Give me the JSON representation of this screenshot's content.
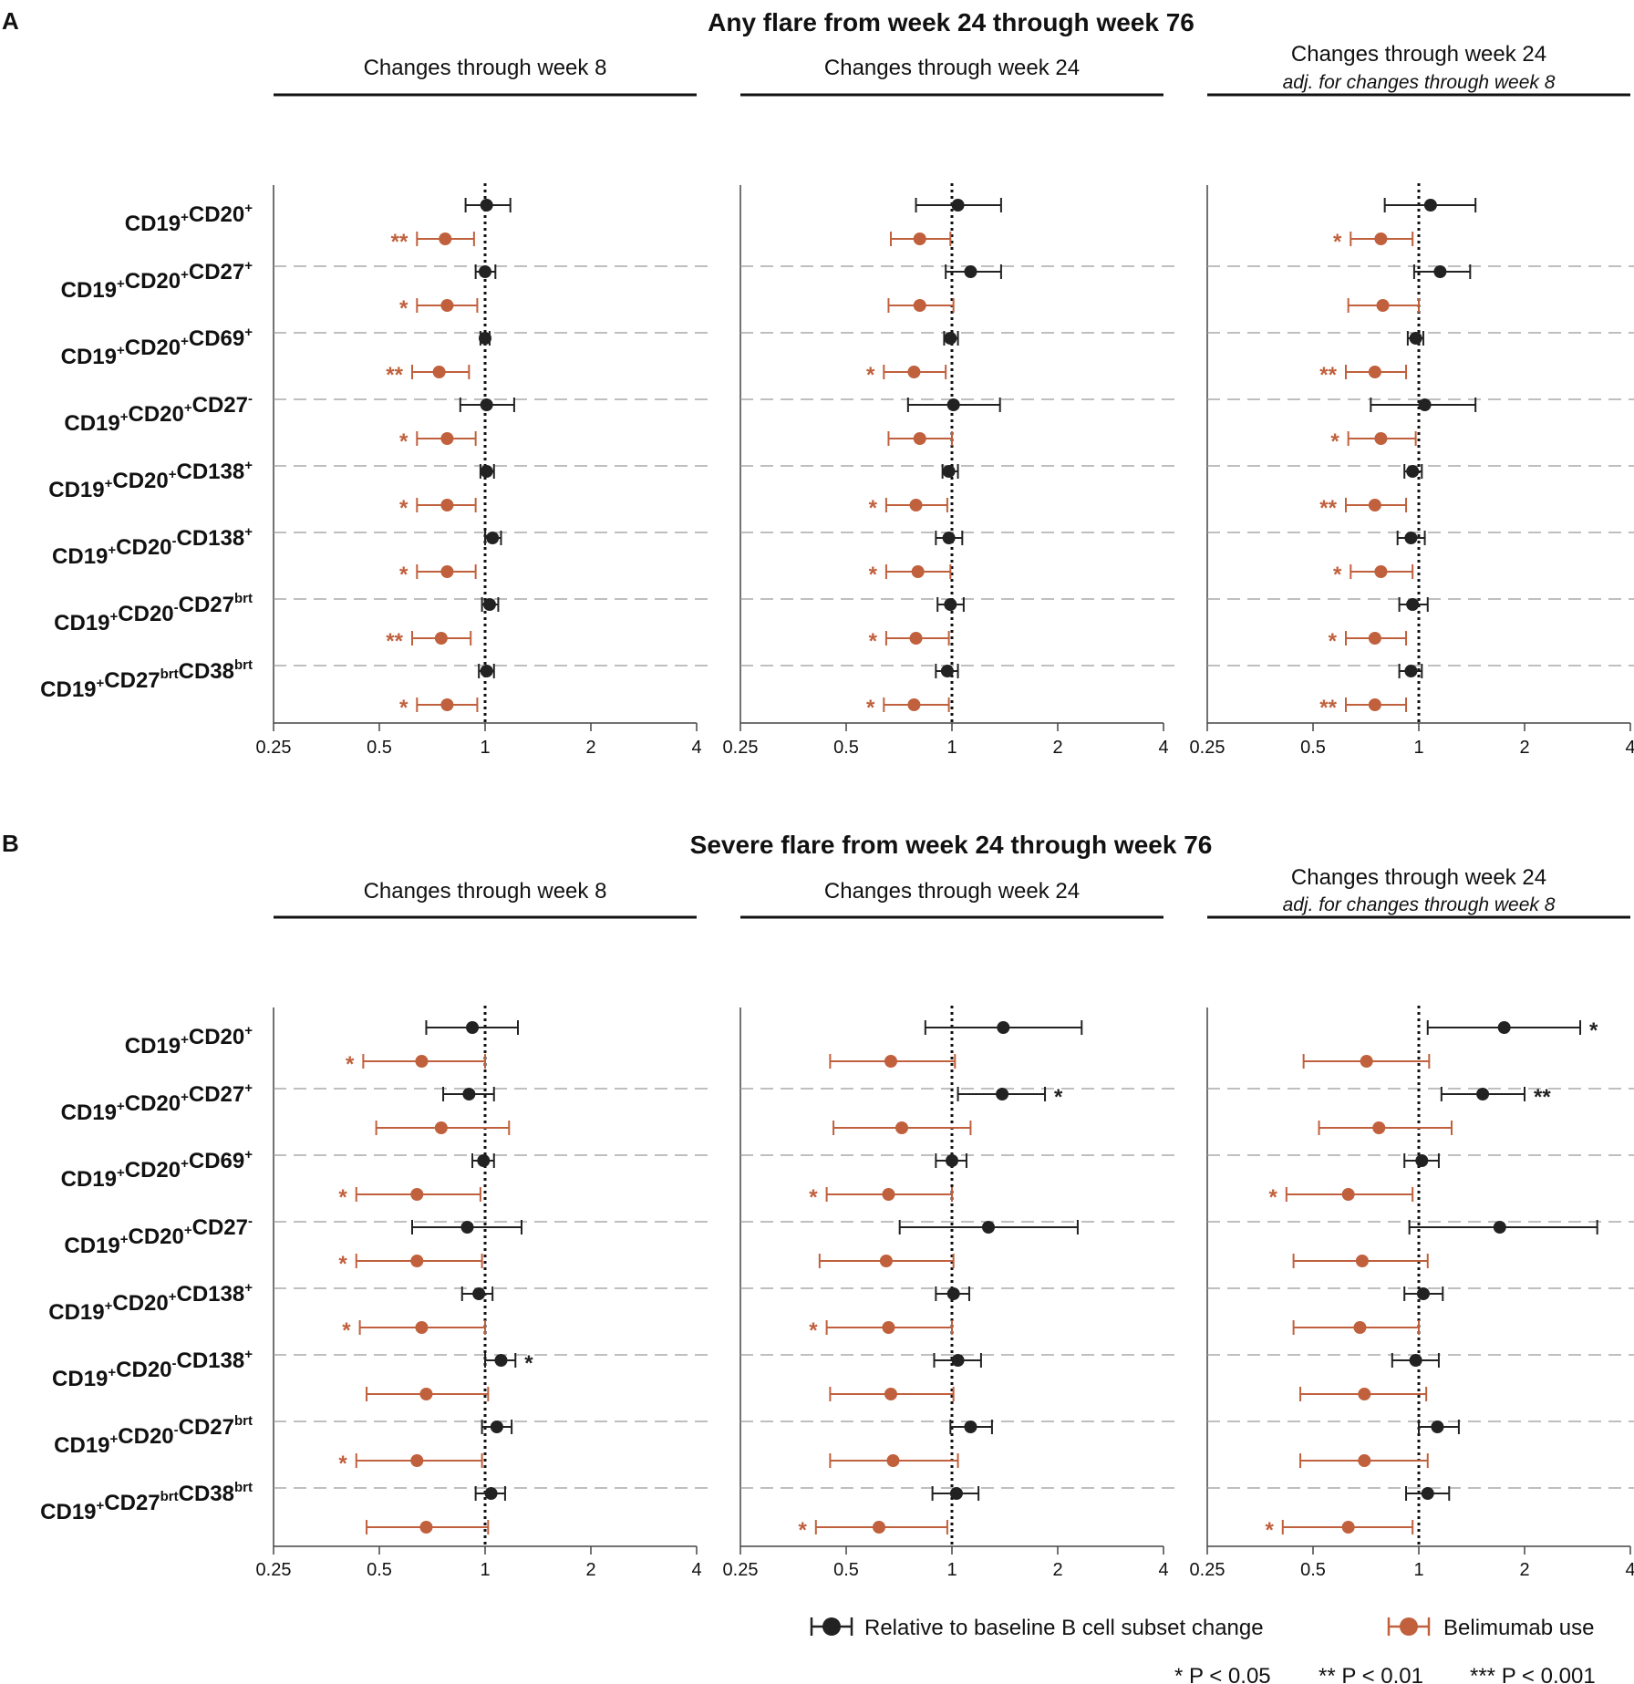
{
  "colors": {
    "baseline": "#222222",
    "belimumab": "#c0603d",
    "separator": "#999999"
  },
  "axis_ticks": [
    {
      "value": 0.25,
      "label": "0.25"
    },
    {
      "value": 0.5,
      "label": "0.5"
    },
    {
      "value": 1,
      "label": "1"
    },
    {
      "value": 2,
      "label": "2"
    },
    {
      "value": 4,
      "label": "4"
    }
  ],
  "columns": [
    {
      "title": "Changes through week 8",
      "subtitle": ""
    },
    {
      "title": "Changes through week 24",
      "subtitle": ""
    },
    {
      "title": "Changes through week 24",
      "subtitle": "adj. for changes through week 8"
    }
  ],
  "rows": [
    {
      "base": "CD19",
      "parts": [
        [
          "+",
          "CD20",
          "+"
        ]
      ],
      "label_text": "CD19+CD20+"
    },
    {
      "label_text": "CD19+CD20+CD27+"
    },
    {
      "label_text": "CD19+CD20+CD69+"
    },
    {
      "label_text": "CD19+CD20+CD27-"
    },
    {
      "label_text": "CD19+CD20+CD138+"
    },
    {
      "label_text": "CD19+CD20-CD138+"
    },
    {
      "label_text": "CD19+CD20-CD27brt"
    },
    {
      "label_text": "CD19+CD27brtCD38brt"
    }
  ],
  "legend": {
    "baseline_label": "Relative to baseline B cell subset change",
    "belimumab_label": "Belimumab use",
    "sig_notes": [
      "* P < 0.05",
      "** P < 0.01",
      "*** P < 0.001"
    ]
  },
  "chart_data": [
    {
      "type": "forest",
      "panel": "A",
      "title": "Any flare from week 24 through week 76",
      "xscale": "log2",
      "xlim": [
        0.25,
        4
      ],
      "reference_line": 1,
      "series_names": [
        "Relative to baseline B cell subset change",
        "Belimumab use"
      ],
      "columns": [
        {
          "name": "Changes through week 8",
          "baseline": [
            {
              "est": 1.01,
              "lo": 0.88,
              "hi": 1.18,
              "sig": ""
            },
            {
              "est": 1.0,
              "lo": 0.94,
              "hi": 1.07,
              "sig": ""
            },
            {
              "est": 1.0,
              "lo": 0.97,
              "hi": 1.03,
              "sig": ""
            },
            {
              "est": 1.01,
              "lo": 0.85,
              "hi": 1.21,
              "sig": ""
            },
            {
              "est": 1.01,
              "lo": 0.97,
              "hi": 1.06,
              "sig": ""
            },
            {
              "est": 1.05,
              "lo": 1.0,
              "hi": 1.11,
              "sig": ""
            },
            {
              "est": 1.03,
              "lo": 0.98,
              "hi": 1.09,
              "sig": ""
            },
            {
              "est": 1.01,
              "lo": 0.96,
              "hi": 1.06,
              "sig": ""
            }
          ],
          "belimumab": [
            {
              "est": 0.77,
              "lo": 0.64,
              "hi": 0.93,
              "sig": "**"
            },
            {
              "est": 0.78,
              "lo": 0.64,
              "hi": 0.95,
              "sig": "*"
            },
            {
              "est": 0.74,
              "lo": 0.62,
              "hi": 0.9,
              "sig": "**"
            },
            {
              "est": 0.78,
              "lo": 0.64,
              "hi": 0.94,
              "sig": "*"
            },
            {
              "est": 0.78,
              "lo": 0.64,
              "hi": 0.94,
              "sig": "*"
            },
            {
              "est": 0.78,
              "lo": 0.64,
              "hi": 0.94,
              "sig": "*"
            },
            {
              "est": 0.75,
              "lo": 0.62,
              "hi": 0.91,
              "sig": "**"
            },
            {
              "est": 0.78,
              "lo": 0.64,
              "hi": 0.95,
              "sig": "*"
            }
          ]
        },
        {
          "name": "Changes through week 24",
          "baseline": [
            {
              "est": 1.04,
              "lo": 0.79,
              "hi": 1.38,
              "sig": ""
            },
            {
              "est": 1.13,
              "lo": 0.96,
              "hi": 1.38,
              "sig": ""
            },
            {
              "est": 0.99,
              "lo": 0.95,
              "hi": 1.04,
              "sig": ""
            },
            {
              "est": 1.01,
              "lo": 0.75,
              "hi": 1.37,
              "sig": ""
            },
            {
              "est": 0.98,
              "lo": 0.94,
              "hi": 1.04,
              "sig": ""
            },
            {
              "est": 0.98,
              "lo": 0.9,
              "hi": 1.07,
              "sig": ""
            },
            {
              "est": 0.99,
              "lo": 0.91,
              "hi": 1.08,
              "sig": ""
            },
            {
              "est": 0.97,
              "lo": 0.9,
              "hi": 1.04,
              "sig": ""
            }
          ],
          "belimumab": [
            {
              "est": 0.81,
              "lo": 0.67,
              "hi": 0.99,
              "sig": ""
            },
            {
              "est": 0.81,
              "lo": 0.66,
              "hi": 1.01,
              "sig": ""
            },
            {
              "est": 0.78,
              "lo": 0.64,
              "hi": 0.96,
              "sig": "*"
            },
            {
              "est": 0.81,
              "lo": 0.66,
              "hi": 1.0,
              "sig": ""
            },
            {
              "est": 0.79,
              "lo": 0.65,
              "hi": 0.97,
              "sig": "*"
            },
            {
              "est": 0.8,
              "lo": 0.65,
              "hi": 0.99,
              "sig": "*"
            },
            {
              "est": 0.79,
              "lo": 0.65,
              "hi": 0.98,
              "sig": "*"
            },
            {
              "est": 0.78,
              "lo": 0.64,
              "hi": 0.98,
              "sig": "*"
            }
          ]
        },
        {
          "name": "Changes through week 24 adj. for changes through week 8",
          "baseline": [
            {
              "est": 1.08,
              "lo": 0.8,
              "hi": 1.45,
              "sig": ""
            },
            {
              "est": 1.15,
              "lo": 0.97,
              "hi": 1.4,
              "sig": ""
            },
            {
              "est": 0.98,
              "lo": 0.93,
              "hi": 1.03,
              "sig": ""
            },
            {
              "est": 1.04,
              "lo": 0.73,
              "hi": 1.45,
              "sig": ""
            },
            {
              "est": 0.96,
              "lo": 0.91,
              "hi": 1.02,
              "sig": ""
            },
            {
              "est": 0.95,
              "lo": 0.87,
              "hi": 1.04,
              "sig": ""
            },
            {
              "est": 0.96,
              "lo": 0.88,
              "hi": 1.06,
              "sig": ""
            },
            {
              "est": 0.95,
              "lo": 0.88,
              "hi": 1.02,
              "sig": ""
            }
          ],
          "belimumab": [
            {
              "est": 0.78,
              "lo": 0.64,
              "hi": 0.96,
              "sig": "*"
            },
            {
              "est": 0.79,
              "lo": 0.63,
              "hi": 1.0,
              "sig": ""
            },
            {
              "est": 0.75,
              "lo": 0.62,
              "hi": 0.92,
              "sig": "**"
            },
            {
              "est": 0.78,
              "lo": 0.63,
              "hi": 0.98,
              "sig": "*"
            },
            {
              "est": 0.75,
              "lo": 0.62,
              "hi": 0.92,
              "sig": "**"
            },
            {
              "est": 0.78,
              "lo": 0.64,
              "hi": 0.96,
              "sig": "*"
            },
            {
              "est": 0.75,
              "lo": 0.62,
              "hi": 0.92,
              "sig": "*"
            },
            {
              "est": 0.75,
              "lo": 0.62,
              "hi": 0.92,
              "sig": "**"
            }
          ]
        }
      ]
    },
    {
      "type": "forest",
      "panel": "B",
      "title": "Severe flare from week 24 through week 76",
      "xscale": "log2",
      "xlim": [
        0.25,
        4
      ],
      "reference_line": 1,
      "series_names": [
        "Relative to baseline B cell subset change",
        "Belimumab use"
      ],
      "columns": [
        {
          "name": "Changes through week 8",
          "baseline": [
            {
              "est": 0.92,
              "lo": 0.68,
              "hi": 1.24,
              "sig": ""
            },
            {
              "est": 0.9,
              "lo": 0.76,
              "hi": 1.06,
              "sig": ""
            },
            {
              "est": 0.99,
              "lo": 0.92,
              "hi": 1.06,
              "sig": ""
            },
            {
              "est": 0.89,
              "lo": 0.62,
              "hi": 1.27,
              "sig": ""
            },
            {
              "est": 0.96,
              "lo": 0.86,
              "hi": 1.05,
              "sig": ""
            },
            {
              "est": 1.11,
              "lo": 1.0,
              "hi": 1.22,
              "sig": "*"
            },
            {
              "est": 1.08,
              "lo": 0.98,
              "hi": 1.19,
              "sig": ""
            },
            {
              "est": 1.04,
              "lo": 0.94,
              "hi": 1.14,
              "sig": ""
            }
          ],
          "belimumab": [
            {
              "est": 0.66,
              "lo": 0.45,
              "hi": 1.0,
              "sig": "*"
            },
            {
              "est": 0.75,
              "lo": 0.49,
              "hi": 1.17,
              "sig": ""
            },
            {
              "est": 0.64,
              "lo": 0.43,
              "hi": 0.97,
              "sig": "*"
            },
            {
              "est": 0.64,
              "lo": 0.43,
              "hi": 0.98,
              "sig": "*"
            },
            {
              "est": 0.66,
              "lo": 0.44,
              "hi": 1.0,
              "sig": "*"
            },
            {
              "est": 0.68,
              "lo": 0.46,
              "hi": 1.02,
              "sig": ""
            },
            {
              "est": 0.64,
              "lo": 0.43,
              "hi": 0.98,
              "sig": "*"
            },
            {
              "est": 0.68,
              "lo": 0.46,
              "hi": 1.02,
              "sig": ""
            }
          ]
        },
        {
          "name": "Changes through week 24",
          "baseline": [
            {
              "est": 1.4,
              "lo": 0.84,
              "hi": 2.34,
              "sig": ""
            },
            {
              "est": 1.39,
              "lo": 1.04,
              "hi": 1.84,
              "sig": "*"
            },
            {
              "est": 1.0,
              "lo": 0.9,
              "hi": 1.1,
              "sig": ""
            },
            {
              "est": 1.27,
              "lo": 0.71,
              "hi": 2.28,
              "sig": ""
            },
            {
              "est": 1.01,
              "lo": 0.9,
              "hi": 1.12,
              "sig": ""
            },
            {
              "est": 1.04,
              "lo": 0.89,
              "hi": 1.21,
              "sig": ""
            },
            {
              "est": 1.13,
              "lo": 0.99,
              "hi": 1.3,
              "sig": ""
            },
            {
              "est": 1.03,
              "lo": 0.88,
              "hi": 1.19,
              "sig": ""
            }
          ],
          "belimumab": [
            {
              "est": 0.67,
              "lo": 0.45,
              "hi": 1.02,
              "sig": ""
            },
            {
              "est": 0.72,
              "lo": 0.46,
              "hi": 1.13,
              "sig": ""
            },
            {
              "est": 0.66,
              "lo": 0.44,
              "hi": 1.0,
              "sig": "*"
            },
            {
              "est": 0.65,
              "lo": 0.42,
              "hi": 1.01,
              "sig": ""
            },
            {
              "est": 0.66,
              "lo": 0.44,
              "hi": 1.0,
              "sig": "*"
            },
            {
              "est": 0.67,
              "lo": 0.45,
              "hi": 1.01,
              "sig": ""
            },
            {
              "est": 0.68,
              "lo": 0.45,
              "hi": 1.04,
              "sig": ""
            },
            {
              "est": 0.62,
              "lo": 0.41,
              "hi": 0.97,
              "sig": "*"
            }
          ]
        },
        {
          "name": "Changes through week 24 adj. for changes through week 8",
          "baseline": [
            {
              "est": 1.75,
              "lo": 1.06,
              "hi": 2.88,
              "sig": "*"
            },
            {
              "est": 1.52,
              "lo": 1.16,
              "hi": 2.0,
              "sig": "**"
            },
            {
              "est": 1.02,
              "lo": 0.91,
              "hi": 1.14,
              "sig": ""
            },
            {
              "est": 1.7,
              "lo": 0.94,
              "hi": 3.22,
              "sig": ""
            },
            {
              "est": 1.03,
              "lo": 0.91,
              "hi": 1.17,
              "sig": ""
            },
            {
              "est": 0.98,
              "lo": 0.84,
              "hi": 1.14,
              "sig": ""
            },
            {
              "est": 1.13,
              "lo": 1.0,
              "hi": 1.3,
              "sig": ""
            },
            {
              "est": 1.06,
              "lo": 0.92,
              "hi": 1.22,
              "sig": ""
            }
          ],
          "belimumab": [
            {
              "est": 0.71,
              "lo": 0.47,
              "hi": 1.07,
              "sig": ""
            },
            {
              "est": 0.77,
              "lo": 0.52,
              "hi": 1.24,
              "sig": ""
            },
            {
              "est": 0.63,
              "lo": 0.42,
              "hi": 0.96,
              "sig": "*"
            },
            {
              "est": 0.69,
              "lo": 0.44,
              "hi": 1.06,
              "sig": ""
            },
            {
              "est": 0.68,
              "lo": 0.44,
              "hi": 1.0,
              "sig": ""
            },
            {
              "est": 0.7,
              "lo": 0.46,
              "hi": 1.05,
              "sig": ""
            },
            {
              "est": 0.7,
              "lo": 0.46,
              "hi": 1.06,
              "sig": ""
            },
            {
              "est": 0.63,
              "lo": 0.41,
              "hi": 0.96,
              "sig": "*"
            }
          ]
        }
      ]
    }
  ]
}
